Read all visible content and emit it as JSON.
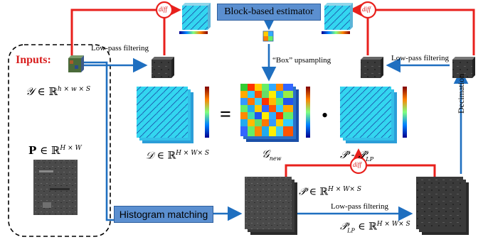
{
  "inputs_label": "Inputs:",
  "blocks": {
    "estimator": "Block-based estimator",
    "histogram": "Histogram matching"
  },
  "labels": {
    "low_pass_left": "Low-pass filtering",
    "low_pass_right": "Low-pass filtering",
    "low_pass_bottom": "Low-pass filtering",
    "box_upsampling": "“Box” upsampling",
    "decimation": "Decimation",
    "diff": "diff"
  },
  "operators": {
    "equals": "=",
    "dot": "•"
  },
  "math": {
    "Y_sym": "𝒴",
    "Y_space": "∈ ℝ",
    "Y_exp": "h × w × S",
    "P_sym": "P",
    "P_space": "∈ ℝ",
    "P_exp": "H × W",
    "D_sym": "𝒟",
    "D_space": "∈ ℝ",
    "D_exp": "H × W× S",
    "G_sym": "𝒢",
    "G_sub": "new",
    "Ph_sym": "𝒫̂",
    "Ph_space": "∈ ℝ",
    "Ph_exp": "H × W× S",
    "PhLP_sym": "𝒫̂",
    "PhLP_sub": "LP",
    "PhLP_space": "∈ ℝ",
    "PhLP_exp": "H × W× S",
    "diffP_a": "𝒫̂",
    "diffP_minus": " - ",
    "diffP_b": "𝒫̂",
    "diffP_sub": "LP"
  },
  "colors": {
    "red_line": "#e8201c",
    "blue_line": "#1f6fc0",
    "block_fill": "#5b8fd0",
    "text_red": "#d81e1e"
  }
}
